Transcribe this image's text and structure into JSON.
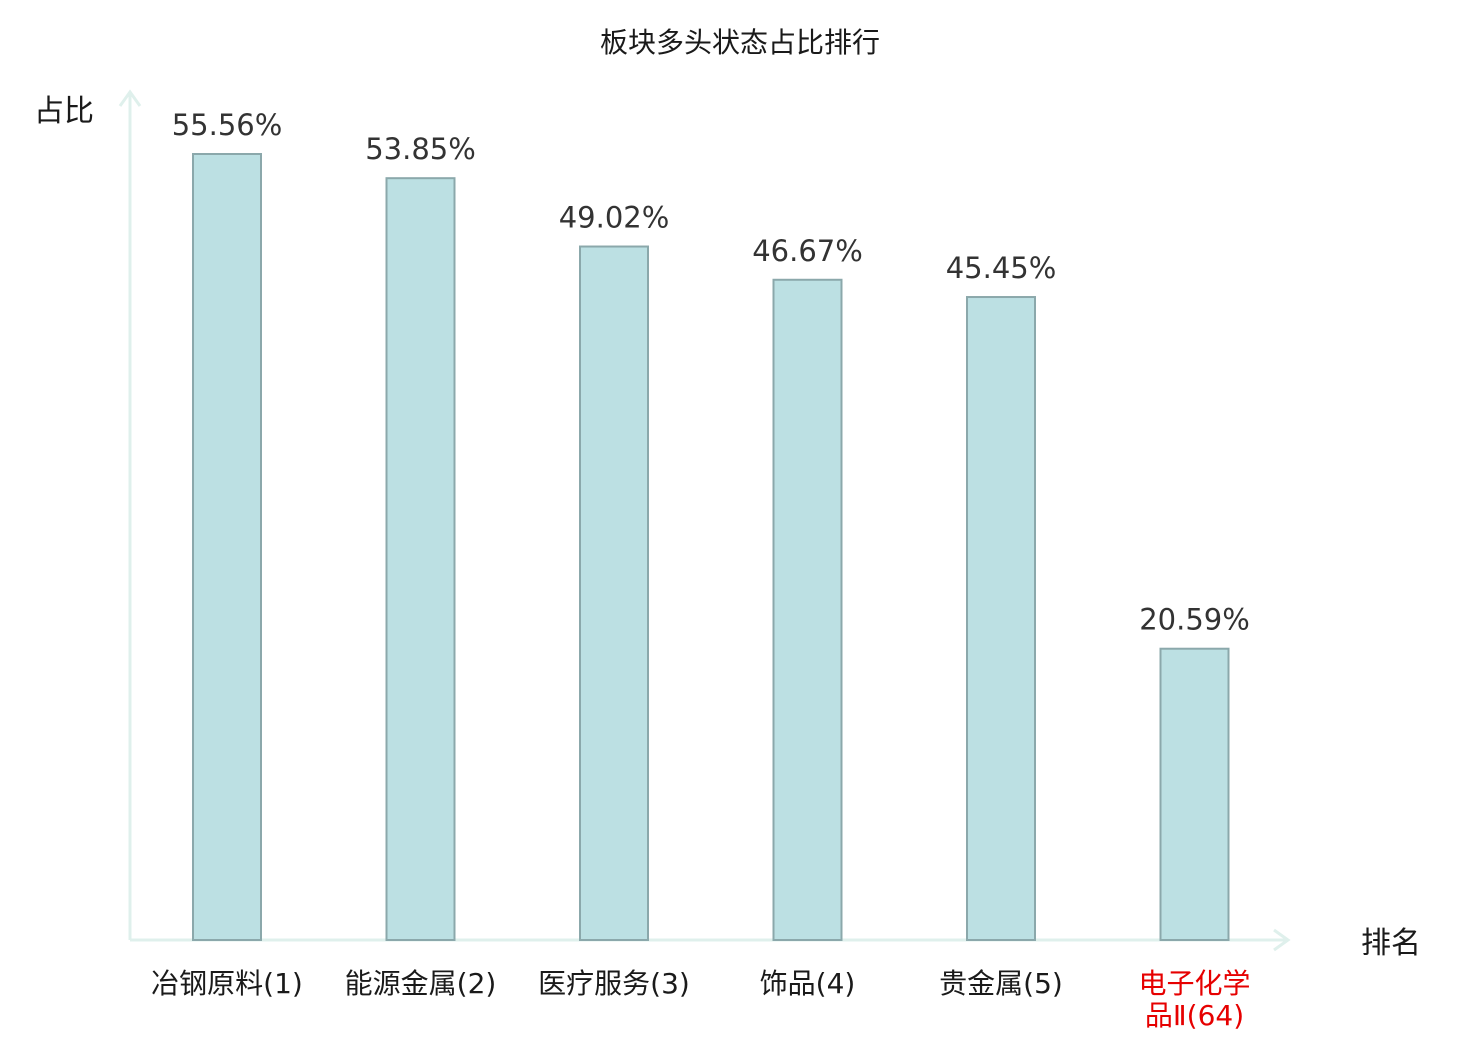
{
  "chart_data": {
    "type": "bar",
    "title": "板块多头状态占比排行",
    "ylabel": "占比",
    "xlabel": "排名",
    "ylim": [
      0,
      60
    ],
    "grid": false,
    "categories": [
      [
        "冶钢原料(1)"
      ],
      [
        "能源金属(2)"
      ],
      [
        "医疗服务(3)"
      ],
      [
        "饰品(4)"
      ],
      [
        "贵金属(5)"
      ],
      [
        "电子化学",
        "品Ⅱ(64)"
      ]
    ],
    "values": [
      55.56,
      53.85,
      49.02,
      46.67,
      45.45,
      20.59
    ],
    "value_labels": [
      "55.56%",
      "53.85%",
      "49.02%",
      "46.67%",
      "45.45%",
      "20.59%"
    ],
    "category_colors": [
      "#1a1a1a",
      "#1a1a1a",
      "#1a1a1a",
      "#1a1a1a",
      "#1a1a1a",
      "#e60000"
    ],
    "colors": {
      "bar_fill": "#bce0e3",
      "bar_stroke": "#8ba8ab",
      "axis": "#dff0ec",
      "highlight": "#e60000"
    }
  }
}
